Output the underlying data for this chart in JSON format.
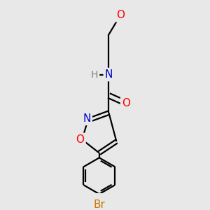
{
  "background_color": "#e8e8e8",
  "bond_color": "#000000",
  "atom_colors": {
    "O": "#ff0000",
    "N": "#0000cc",
    "Br": "#cc7700",
    "H": "#808080",
    "C": "#000000"
  },
  "bond_width": 1.6,
  "font_size_atom": 10,
  "font_size_small": 9
}
